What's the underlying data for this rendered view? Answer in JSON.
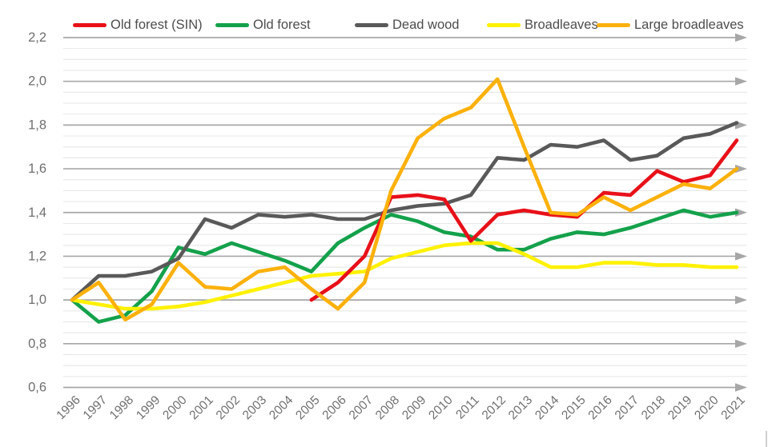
{
  "chart_data": {
    "type": "line",
    "x": [
      1996,
      1997,
      1998,
      1999,
      2000,
      2001,
      2002,
      2003,
      2004,
      2005,
      2006,
      2007,
      2008,
      2009,
      2010,
      2011,
      2012,
      2013,
      2014,
      2015,
      2016,
      2017,
      2018,
      2019,
      2020,
      2021
    ],
    "series": [
      {
        "name": "Old forest (SIN)",
        "color": "#e81019",
        "values": [
          null,
          null,
          null,
          null,
          null,
          null,
          null,
          null,
          null,
          1.0,
          1.08,
          1.2,
          1.47,
          1.48,
          1.46,
          1.27,
          1.39,
          1.41,
          1.39,
          1.38,
          1.49,
          1.48,
          1.59,
          1.54,
          1.57,
          1.73
        ]
      },
      {
        "name": "Old forest",
        "color": "#14a14b",
        "values": [
          1.0,
          0.9,
          0.93,
          1.04,
          1.24,
          1.21,
          1.26,
          1.22,
          1.18,
          1.13,
          1.26,
          1.33,
          1.39,
          1.36,
          1.31,
          1.29,
          1.23,
          1.23,
          1.28,
          1.31,
          1.3,
          1.33,
          1.37,
          1.41,
          1.38,
          1.4
        ]
      },
      {
        "name": "Dead wood",
        "color": "#595959",
        "values": [
          1.0,
          1.11,
          1.11,
          1.13,
          1.19,
          1.37,
          1.33,
          1.39,
          1.38,
          1.39,
          1.37,
          1.37,
          1.41,
          1.43,
          1.44,
          1.48,
          1.65,
          1.64,
          1.71,
          1.7,
          1.73,
          1.64,
          1.66,
          1.74,
          1.76,
          1.81
        ]
      },
      {
        "name": "Broadleaves",
        "color": "#fff100",
        "values": [
          1.0,
          0.98,
          0.96,
          0.96,
          0.97,
          0.99,
          1.02,
          1.05,
          1.08,
          1.11,
          1.12,
          1.13,
          1.19,
          1.22,
          1.25,
          1.26,
          1.26,
          1.21,
          1.15,
          1.15,
          1.17,
          1.17,
          1.16,
          1.16,
          1.15,
          1.15
        ]
      },
      {
        "name": "Large broadleaves",
        "color": "#fbb10c",
        "values": [
          1.0,
          1.08,
          0.91,
          0.98,
          1.17,
          1.06,
          1.05,
          1.13,
          1.15,
          1.05,
          0.96,
          1.08,
          1.5,
          1.74,
          1.83,
          1.88,
          2.01,
          1.7,
          1.4,
          1.39,
          1.47,
          1.41,
          1.47,
          1.53,
          1.51,
          1.6
        ]
      }
    ],
    "title": "",
    "xlabel": "",
    "ylabel": "",
    "ylim": [
      0.6,
      2.2
    ],
    "ytick_values": [
      0.6,
      0.8,
      1.0,
      1.2,
      1.4,
      1.6,
      1.8,
      2.0,
      2.2
    ],
    "ytick_labels": [
      "0,6",
      "0,8",
      "1,0",
      "1,2",
      "1,4",
      "1,6",
      "1,8",
      "2,0",
      "2,2"
    ],
    "minor_tick_step": 0.05,
    "grid": "major-with-arrows-plus-minor",
    "legend_position": "top",
    "x_label_rotation_deg": -45
  },
  "style": {
    "major_grid_color": "#a7a7a7",
    "minor_grid_color": "#e9e9e9",
    "axis_text_color": "#6f6f6f",
    "legend_text_color": "#4d4d4d",
    "background_color": "#ffffff"
  }
}
